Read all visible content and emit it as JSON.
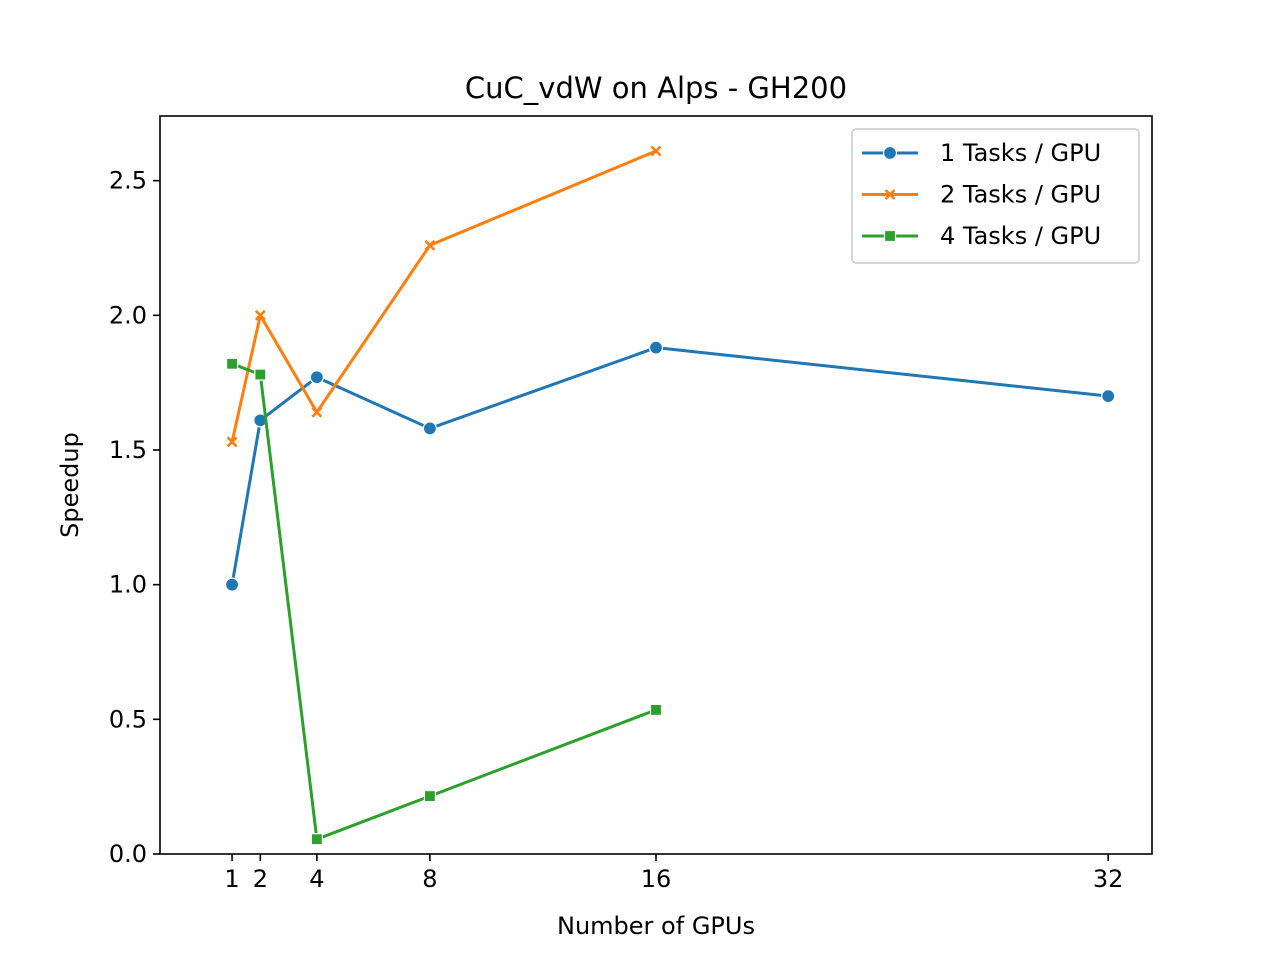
{
  "chart_data": {
    "type": "line",
    "title": "CuC_vdW on Alps - GH200",
    "xlabel": "Number of GPUs",
    "ylabel": "Speedup",
    "xlim": [
      -1.55,
      33.55
    ],
    "ylim": [
      0,
      2.74
    ],
    "x_ticks": [
      1,
      2,
      4,
      8,
      16,
      32
    ],
    "x_tick_labels": [
      "1",
      "2",
      "4",
      "8",
      "16",
      "32"
    ],
    "y_ticks": [
      0,
      0.5,
      1,
      1.5,
      2,
      2.5
    ],
    "y_tick_labels": [
      "0.0",
      "0.5",
      "1.0",
      "1.5",
      "2.0",
      "2.5"
    ],
    "grid": false,
    "legend_position": "top-right",
    "series": [
      {
        "name": "1 Tasks / GPU",
        "color": "#1f77b4",
        "marker": "circle",
        "x": [
          1,
          2,
          4,
          8,
          16,
          32
        ],
        "y": [
          1.0,
          1.61,
          1.77,
          1.58,
          1.88,
          1.7
        ]
      },
      {
        "name": "2 Tasks / GPU",
        "color": "#ff7f0e",
        "marker": "x",
        "x": [
          1,
          2,
          4,
          8,
          16
        ],
        "y": [
          1.53,
          2.0,
          1.64,
          2.26,
          2.61
        ]
      },
      {
        "name": "4 Tasks / GPU",
        "color": "#2ca02c",
        "marker": "square",
        "x": [
          1,
          2,
          4,
          8,
          16
        ],
        "y": [
          1.82,
          1.78,
          0.055,
          0.215,
          0.535
        ]
      }
    ]
  }
}
